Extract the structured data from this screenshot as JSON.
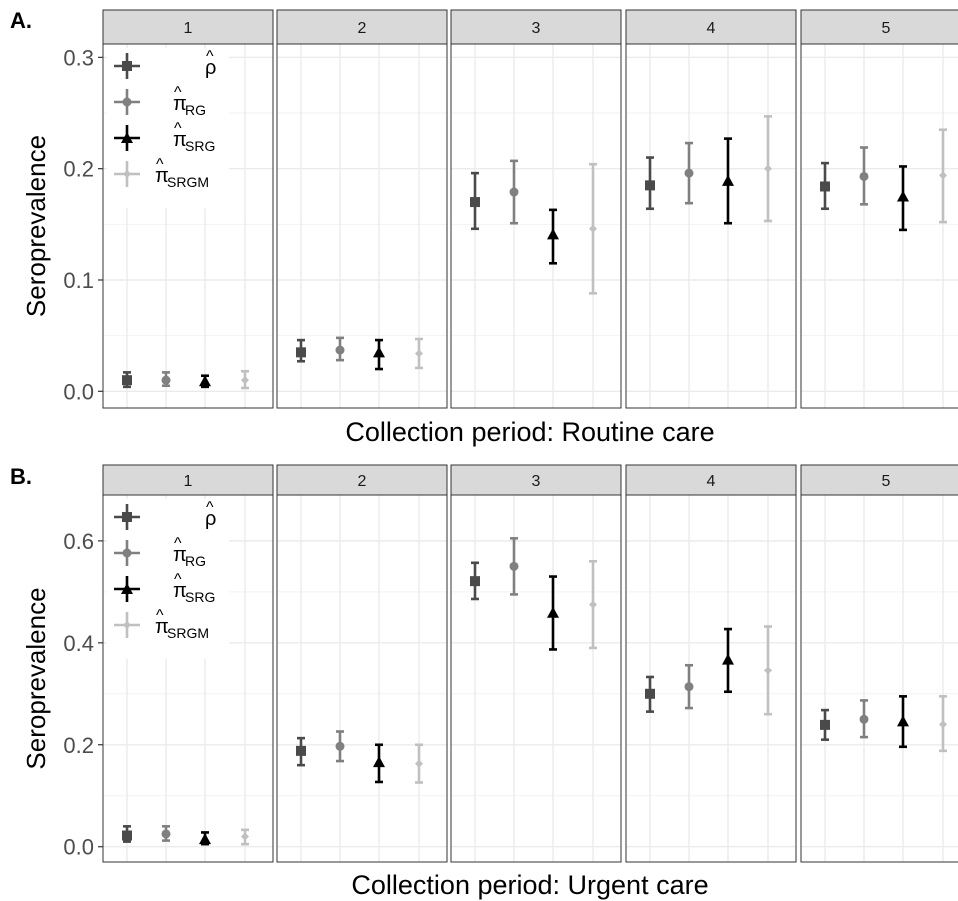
{
  "chart_data": [
    {
      "type": "errorbar",
      "panel_label": "A.",
      "xlabel": "Collection period: Routine care",
      "ylabel": "Seroprevalence",
      "ylim": [
        -0.015,
        0.312
      ],
      "y_ticks": [
        "0.0",
        "0.1",
        "0.2",
        "0.3"
      ],
      "facets": [
        "1",
        "2",
        "3",
        "4",
        "5"
      ],
      "grid": true,
      "legend_position": "top-left (inside facet 1)",
      "series": [
        {
          "name": "ρ̂",
          "marker": "square",
          "color": "#4a4a4a",
          "values": [
            [
              0.01,
              0.004,
              0.017
            ],
            [
              0.035,
              0.027,
              0.046
            ],
            [
              0.17,
              0.146,
              0.196
            ],
            [
              0.185,
              0.164,
              0.21
            ],
            [
              0.184,
              0.164,
              0.205
            ]
          ]
        },
        {
          "name": "π̂RG",
          "marker": "circle",
          "color": "#808080",
          "values": [
            [
              0.01,
              0.005,
              0.017
            ],
            [
              0.037,
              0.028,
              0.048
            ],
            [
              0.179,
              0.151,
              0.207
            ],
            [
              0.196,
              0.169,
              0.223
            ],
            [
              0.193,
              0.168,
              0.219
            ]
          ]
        },
        {
          "name": "π̂SRG",
          "marker": "triangle",
          "color": "#000000",
          "values": [
            [
              0.009,
              0.004,
              0.014
            ],
            [
              0.035,
              0.02,
              0.046
            ],
            [
              0.141,
              0.115,
              0.163
            ],
            [
              0.189,
              0.151,
              0.227
            ],
            [
              0.175,
              0.145,
              0.202
            ]
          ]
        },
        {
          "name": "π̂SRGM",
          "marker": "diamond",
          "color": "#c0c0c0",
          "values": [
            [
              0.01,
              0.003,
              0.018
            ],
            [
              0.034,
              0.021,
              0.047
            ],
            [
              0.146,
              0.088,
              0.204
            ],
            [
              0.2,
              0.153,
              0.247
            ],
            [
              0.194,
              0.152,
              0.235
            ]
          ]
        }
      ]
    },
    {
      "type": "errorbar",
      "panel_label": "B.",
      "xlabel": "Collection period: Urgent care",
      "ylabel": "Seroprevalence",
      "ylim": [
        -0.03,
        0.69
      ],
      "y_ticks": [
        "0.0",
        "0.2",
        "0.4",
        "0.6"
      ],
      "facets": [
        "1",
        "2",
        "3",
        "4",
        "5"
      ],
      "grid": true,
      "legend_position": "top-left (inside facet 1)",
      "series": [
        {
          "name": "ρ̂",
          "marker": "square",
          "color": "#4a4a4a",
          "values": [
            [
              0.022,
              0.01,
              0.04
            ],
            [
              0.188,
              0.16,
              0.213
            ],
            [
              0.521,
              0.486,
              0.557
            ],
            [
              0.3,
              0.265,
              0.333
            ],
            [
              0.239,
              0.21,
              0.268
            ]
          ]
        },
        {
          "name": "π̂RG",
          "marker": "circle",
          "color": "#808080",
          "values": [
            [
              0.025,
              0.012,
              0.04
            ],
            [
              0.197,
              0.168,
              0.226
            ],
            [
              0.55,
              0.495,
              0.605
            ],
            [
              0.314,
              0.272,
              0.356
            ],
            [
              0.25,
              0.215,
              0.287
            ]
          ]
        },
        {
          "name": "π̂SRG",
          "marker": "triangle",
          "color": "#000000",
          "values": [
            [
              0.015,
              0.005,
              0.028
            ],
            [
              0.166,
              0.127,
              0.2
            ],
            [
              0.459,
              0.387,
              0.53
            ],
            [
              0.367,
              0.304,
              0.427
            ],
            [
              0.246,
              0.196,
              0.295
            ]
          ]
        },
        {
          "name": "π̂SRGM",
          "marker": "diamond",
          "color": "#c0c0c0",
          "values": [
            [
              0.02,
              0.005,
              0.033
            ],
            [
              0.163,
              0.126,
              0.2
            ],
            [
              0.475,
              0.39,
              0.56
            ],
            [
              0.346,
              0.26,
              0.432
            ],
            [
              0.24,
              0.188,
              0.295
            ]
          ]
        }
      ]
    }
  ]
}
